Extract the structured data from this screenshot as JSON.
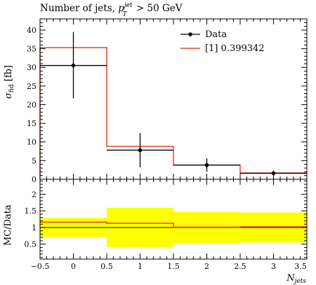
{
  "chart_data": [
    {
      "type": "line",
      "panel": "main",
      "title": "Number of jets, p_T^jet > 50 GeV",
      "title_parts": {
        "main": "Number of jets, ",
        "p": "p",
        "sup": "jet",
        "sub": "T",
        "cut": " > 50 GeV"
      },
      "ylabel": "σ_fid [fb]",
      "ylabel_parts": {
        "sigma": "σ",
        "sub": "fid",
        "unit": " [fb]"
      },
      "xlim": [
        -0.5,
        3.5
      ],
      "ylim": [
        0,
        43
      ],
      "y_ticks": [
        0,
        5,
        10,
        15,
        20,
        25,
        30,
        35,
        40
      ],
      "y_tick_labels": [
        "0",
        "5",
        "10",
        "15",
        "20",
        "25",
        "30",
        "35",
        "40"
      ],
      "legend_position": "top-right",
      "series": [
        {
          "name": "Data",
          "style": "points-with-errors",
          "color": "#000000",
          "x": [
            0,
            1,
            2,
            3
          ],
          "y": [
            30.5,
            7.8,
            3.8,
            1.6
          ],
          "xerr": [
            0.5,
            0.5,
            0.5,
            0.5
          ],
          "yerr_low": [
            8.8,
            4.6,
            1.8,
            0.7
          ],
          "yerr_high": [
            9.0,
            4.6,
            1.8,
            0.7
          ]
        },
        {
          "name": "[1] 0.399342",
          "style": "histogram",
          "color": "#e8432a",
          "bin_edges": [
            -0.5,
            0.5,
            1.5,
            2.5,
            3.5
          ],
          "values": [
            35.3,
            8.8,
            3.8,
            1.7
          ]
        }
      ]
    },
    {
      "type": "line",
      "panel": "ratio",
      "ylabel": "MC/Data",
      "xlabel": "N_jets",
      "xlabel_parts": {
        "n": "N",
        "sub": "jets"
      },
      "xlim": [
        -0.5,
        3.5
      ],
      "ylim": [
        0.05,
        2.45
      ],
      "x_ticks": [
        -0.5,
        0,
        0.5,
        1,
        1.5,
        2,
        2.5,
        3,
        3.5
      ],
      "x_tick_labels": [
        "−0.5",
        "0",
        "0.5",
        "1",
        "1.5",
        "2",
        "2.5",
        "3",
        "3.5"
      ],
      "y_ticks": [
        0.5,
        1,
        1.5,
        2
      ],
      "y_tick_labels": [
        "0.5",
        "1",
        "1.5",
        "2"
      ],
      "band_color": "#ffff00",
      "bin_edges": [
        -0.5,
        0.5,
        1.5,
        2.5,
        3.5
      ],
      "band_low": [
        0.71,
        0.41,
        0.53,
        0.55
      ],
      "band_high": [
        1.29,
        1.59,
        1.47,
        1.45
      ],
      "ratio": [
        1.16,
        1.13,
        1.01,
        1.02
      ],
      "ratio_color": "#e8432a"
    }
  ]
}
